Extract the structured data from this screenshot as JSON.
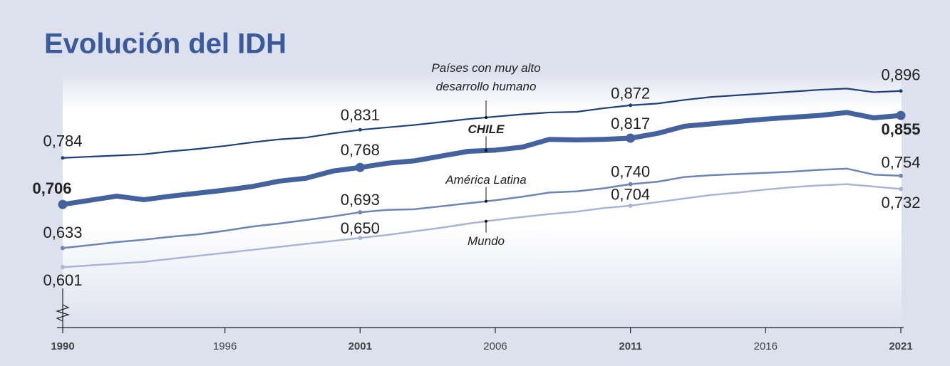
{
  "chart_data": {
    "type": "line",
    "title": "Evolución del IDH",
    "x": [
      1990,
      1991,
      1992,
      1993,
      1994,
      1995,
      1996,
      1997,
      1998,
      1999,
      2000,
      2001,
      2002,
      2003,
      2004,
      2005,
      2006,
      2007,
      2008,
      2009,
      2010,
      2011,
      2012,
      2013,
      2014,
      2015,
      2016,
      2017,
      2018,
      2019,
      2020,
      2021
    ],
    "xlim": [
      1990,
      2021
    ],
    "xticks": [
      1990,
      1996,
      2001,
      2006,
      2011,
      2016,
      2021
    ],
    "bold_xticks": [
      1990,
      2001,
      2011,
      2021
    ],
    "ylim": [
      0.5,
      0.95
    ],
    "series": [
      {
        "name": "Países con muy alto desarrollo humano",
        "color": "#1d3f7a",
        "values": [
          0.784,
          0.786,
          0.788,
          0.79,
          0.795,
          0.799,
          0.804,
          0.81,
          0.815,
          0.818,
          0.825,
          0.831,
          0.835,
          0.839,
          0.844,
          0.849,
          0.853,
          0.857,
          0.86,
          0.861,
          0.867,
          0.872,
          0.875,
          0.881,
          0.886,
          0.889,
          0.892,
          0.895,
          0.898,
          0.9,
          0.894,
          0.896
        ],
        "value_labels": [
          "0,784",
          null,
          null,
          null,
          null,
          null,
          null,
          null,
          null,
          null,
          null,
          "0,831",
          null,
          null,
          null,
          null,
          null,
          null,
          null,
          null,
          null,
          "0,872",
          null,
          null,
          null,
          null,
          null,
          null,
          null,
          null,
          null,
          "0,896"
        ]
      },
      {
        "name": "CHILE",
        "color": "#44639e",
        "values": [
          0.706,
          0.713,
          0.72,
          0.714,
          0.72,
          0.725,
          0.73,
          0.736,
          0.745,
          0.75,
          0.762,
          0.768,
          0.775,
          0.779,
          0.787,
          0.795,
          0.797,
          0.802,
          0.815,
          0.814,
          0.815,
          0.817,
          0.825,
          0.837,
          0.841,
          0.845,
          0.849,
          0.852,
          0.855,
          0.86,
          0.851,
          0.855
        ],
        "value_labels": [
          "0,706",
          null,
          null,
          null,
          null,
          null,
          null,
          null,
          null,
          null,
          null,
          "0,768",
          null,
          null,
          null,
          null,
          null,
          null,
          null,
          null,
          null,
          "0,817",
          null,
          null,
          null,
          null,
          null,
          null,
          null,
          null,
          null,
          "0,855"
        ]
      },
      {
        "name": "América Latina",
        "color": "#6f84b4",
        "values": [
          0.633,
          0.638,
          0.643,
          0.647,
          0.652,
          0.656,
          0.662,
          0.669,
          0.674,
          0.68,
          0.686,
          0.693,
          0.697,
          0.698,
          0.703,
          0.708,
          0.713,
          0.719,
          0.726,
          0.728,
          0.733,
          0.74,
          0.744,
          0.752,
          0.755,
          0.757,
          0.759,
          0.761,
          0.764,
          0.766,
          0.756,
          0.754
        ],
        "value_labels": [
          "0,633",
          null,
          null,
          null,
          null,
          null,
          null,
          null,
          null,
          null,
          null,
          "0,693",
          null,
          null,
          null,
          null,
          null,
          null,
          null,
          null,
          null,
          "0,740",
          null,
          null,
          null,
          null,
          null,
          null,
          null,
          null,
          null,
          "0,754"
        ]
      },
      {
        "name": "Mundo",
        "color": "#a9b5d4",
        "values": [
          0.601,
          0.604,
          0.607,
          0.61,
          0.615,
          0.62,
          0.625,
          0.63,
          0.635,
          0.64,
          0.645,
          0.65,
          0.655,
          0.661,
          0.667,
          0.674,
          0.68,
          0.685,
          0.69,
          0.694,
          0.7,
          0.704,
          0.71,
          0.716,
          0.722,
          0.726,
          0.731,
          0.735,
          0.738,
          0.74,
          0.736,
          0.732
        ],
        "value_labels": [
          "0,601",
          null,
          null,
          null,
          null,
          null,
          null,
          null,
          null,
          null,
          null,
          "0,650",
          null,
          null,
          null,
          null,
          null,
          null,
          null,
          null,
          null,
          "0,704",
          null,
          null,
          null,
          null,
          null,
          null,
          null,
          null,
          null,
          "0,732"
        ]
      }
    ]
  }
}
